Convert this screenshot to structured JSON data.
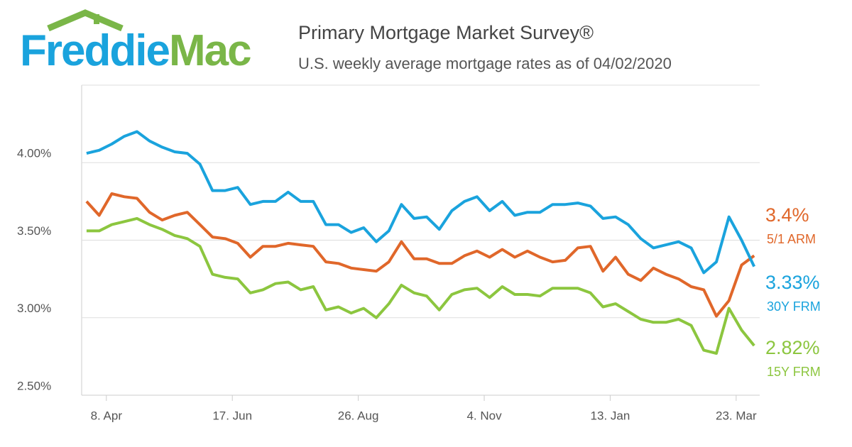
{
  "logo": [
    "Freddie",
    "Mac"
  ],
  "chart_data": {
    "type": "line",
    "title": "Primary Mortgage Market Survey®",
    "subtitle": "U.S. weekly average mortgage rates as of 04/02/2020",
    "x": [
      0,
      1,
      2,
      3,
      4,
      5,
      6,
      7,
      8,
      9,
      10,
      11,
      12,
      13,
      14,
      15,
      16,
      17,
      18,
      19,
      20,
      21,
      22,
      23,
      24,
      25,
      26,
      27,
      28,
      29,
      30,
      31,
      32,
      33,
      34,
      35,
      36,
      37,
      38,
      39,
      40,
      41,
      42,
      43,
      44,
      45,
      46,
      47,
      48,
      49,
      50,
      51,
      52,
      53
    ],
    "xlim": [
      -0.39,
      53.44
    ],
    "xticks": [
      {
        "value": 1.571,
        "label": "8. Apr"
      },
      {
        "value": 11.571,
        "label": "17. Jun"
      },
      {
        "value": 21.571,
        "label": "26. Aug"
      },
      {
        "value": 31.571,
        "label": "4. Nov"
      },
      {
        "value": 41.571,
        "label": "13. Jan"
      },
      {
        "value": 51.571,
        "label": "23. Mar"
      }
    ],
    "ylim": [
      2.5,
      4.5
    ],
    "yticks": [
      {
        "value": 2.5,
        "label": "2.50%"
      },
      {
        "value": 3,
        "label": "3.00%"
      },
      {
        "value": 3.5,
        "label": "3.50%"
      },
      {
        "value": 4,
        "label": "4.00%"
      }
    ],
    "grid": true,
    "series": [
      {
        "name": "5/1 ARM",
        "color": "#e0672a",
        "value_label": "3.4%",
        "values": [
          3.75,
          3.66,
          3.8,
          3.78,
          3.77,
          3.68,
          3.63,
          3.66,
          3.68,
          3.6,
          3.52,
          3.51,
          3.48,
          3.39,
          3.46,
          3.46,
          3.48,
          3.47,
          3.46,
          3.36,
          3.35,
          3.32,
          3.31,
          3.3,
          3.36,
          3.49,
          3.38,
          3.38,
          3.35,
          3.35,
          3.4,
          3.43,
          3.39,
          3.44,
          3.39,
          3.43,
          3.39,
          3.36,
          3.37,
          3.45,
          3.46,
          3.3,
          3.39,
          3.28,
          3.24,
          3.32,
          3.28,
          3.25,
          3.2,
          3.18,
          3.01,
          3.11,
          3.34,
          3.4
        ]
      },
      {
        "name": "30Y FRM",
        "color": "#1aa3dd",
        "value_label": "3.33%",
        "values": [
          4.06,
          4.08,
          4.12,
          4.17,
          4.2,
          4.14,
          4.1,
          4.07,
          4.06,
          3.99,
          3.82,
          3.82,
          3.84,
          3.73,
          3.75,
          3.75,
          3.81,
          3.75,
          3.75,
          3.6,
          3.6,
          3.55,
          3.58,
          3.49,
          3.56,
          3.73,
          3.64,
          3.65,
          3.57,
          3.69,
          3.75,
          3.78,
          3.69,
          3.75,
          3.66,
          3.68,
          3.68,
          3.73,
          3.73,
          3.74,
          3.72,
          3.64,
          3.65,
          3.6,
          3.51,
          3.45,
          3.47,
          3.49,
          3.45,
          3.29,
          3.36,
          3.65,
          3.5,
          3.33
        ]
      },
      {
        "name": "15Y FRM",
        "color": "#8cc63f",
        "value_label": "2.82%",
        "values": [
          3.56,
          3.56,
          3.6,
          3.62,
          3.64,
          3.6,
          3.57,
          3.53,
          3.51,
          3.46,
          3.28,
          3.26,
          3.25,
          3.16,
          3.18,
          3.22,
          3.23,
          3.18,
          3.2,
          3.05,
          3.07,
          3.03,
          3.06,
          3.0,
          3.09,
          3.21,
          3.16,
          3.14,
          3.05,
          3.15,
          3.18,
          3.19,
          3.13,
          3.2,
          3.15,
          3.15,
          3.14,
          3.19,
          3.19,
          3.19,
          3.16,
          3.07,
          3.09,
          3.04,
          2.99,
          2.97,
          2.97,
          2.99,
          2.95,
          2.79,
          2.77,
          3.06,
          2.92,
          2.82
        ]
      }
    ]
  }
}
